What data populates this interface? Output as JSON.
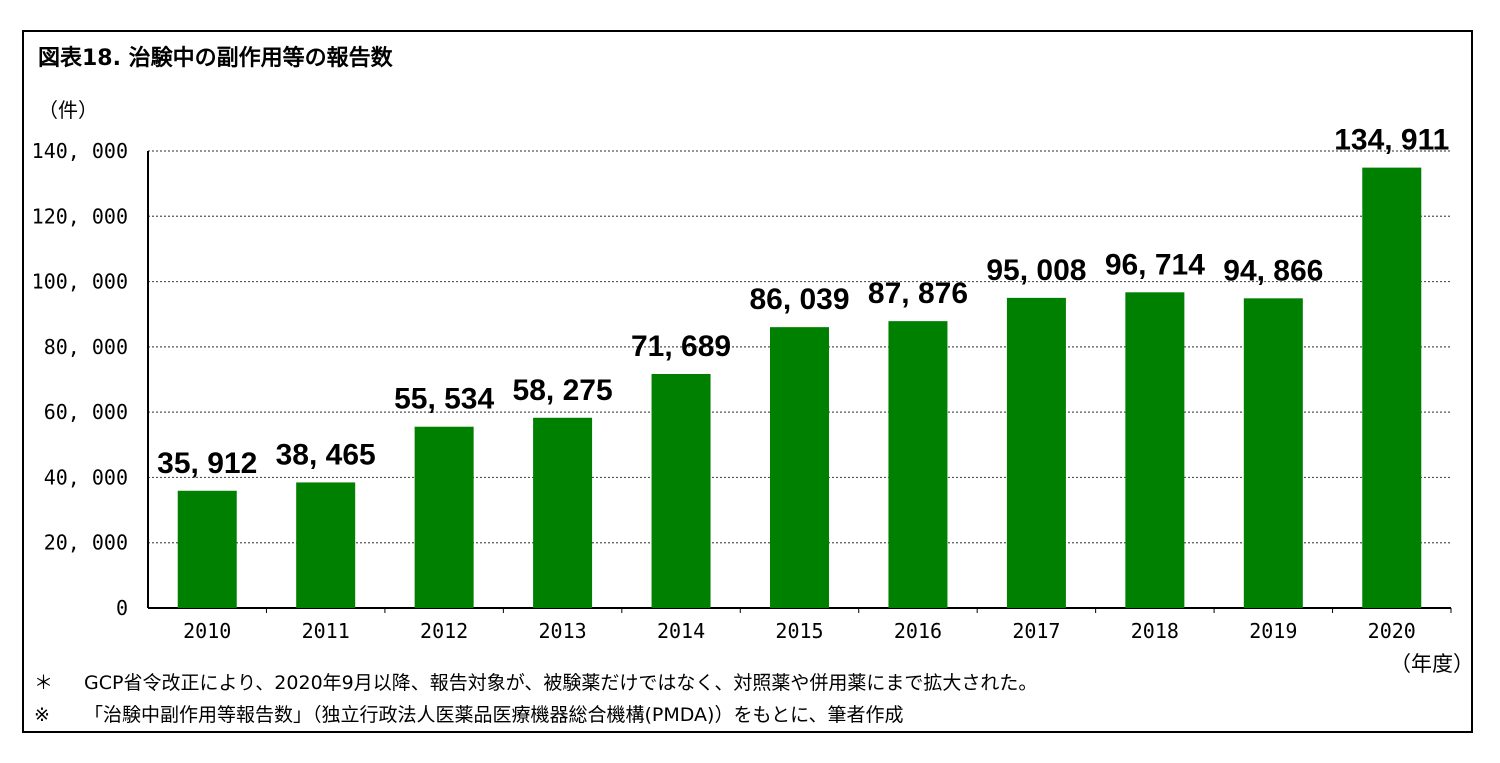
{
  "title": "図表18. 治験中の副作用等の報告数",
  "y_unit": "（件）",
  "x_unit": "（年度）",
  "notes": [
    {
      "mark": "＊",
      "text": "GCP省令改正により、2020年9月以降、報告対象が、被験薬だけではなく、対照薬や併用薬にまで拡大された。"
    },
    {
      "mark": "※",
      "text": "「治験中副作用等報告数」（独立行政法人医薬品医療機器総合機構(PMDA)）をもとに、筆者作成"
    }
  ],
  "colors": {
    "bar": "#008000",
    "grid": "#555555",
    "axis": "#000000"
  },
  "chart_data": {
    "type": "bar",
    "title": "図表18. 治験中の副作用等の報告数",
    "xlabel": "（年度）",
    "ylabel": "（件）",
    "categories": [
      "2010",
      "2011",
      "2012",
      "2013",
      "2014",
      "2015",
      "2016",
      "2017",
      "2018",
      "2019",
      "2020"
    ],
    "values": [
      35912,
      38465,
      55534,
      58275,
      71689,
      86039,
      87876,
      95008,
      96714,
      94866,
      134911
    ],
    "value_labels": [
      "35, 912",
      "38, 465",
      "55, 534",
      "58, 275",
      "71, 689",
      "86, 039",
      "87, 876",
      "95, 008",
      "96, 714",
      "94, 866",
      "134, 911"
    ],
    "ylim": [
      0,
      140000
    ],
    "yticks": [
      0,
      20000,
      40000,
      60000,
      80000,
      100000,
      120000,
      140000
    ],
    "ytick_labels": [
      "0",
      "20, 000",
      "40, 000",
      "60, 000",
      "80, 000",
      "100, 000",
      "120, 000",
      "140, 000"
    ],
    "grid": true,
    "grid_style": "dotted",
    "legend": "none"
  }
}
